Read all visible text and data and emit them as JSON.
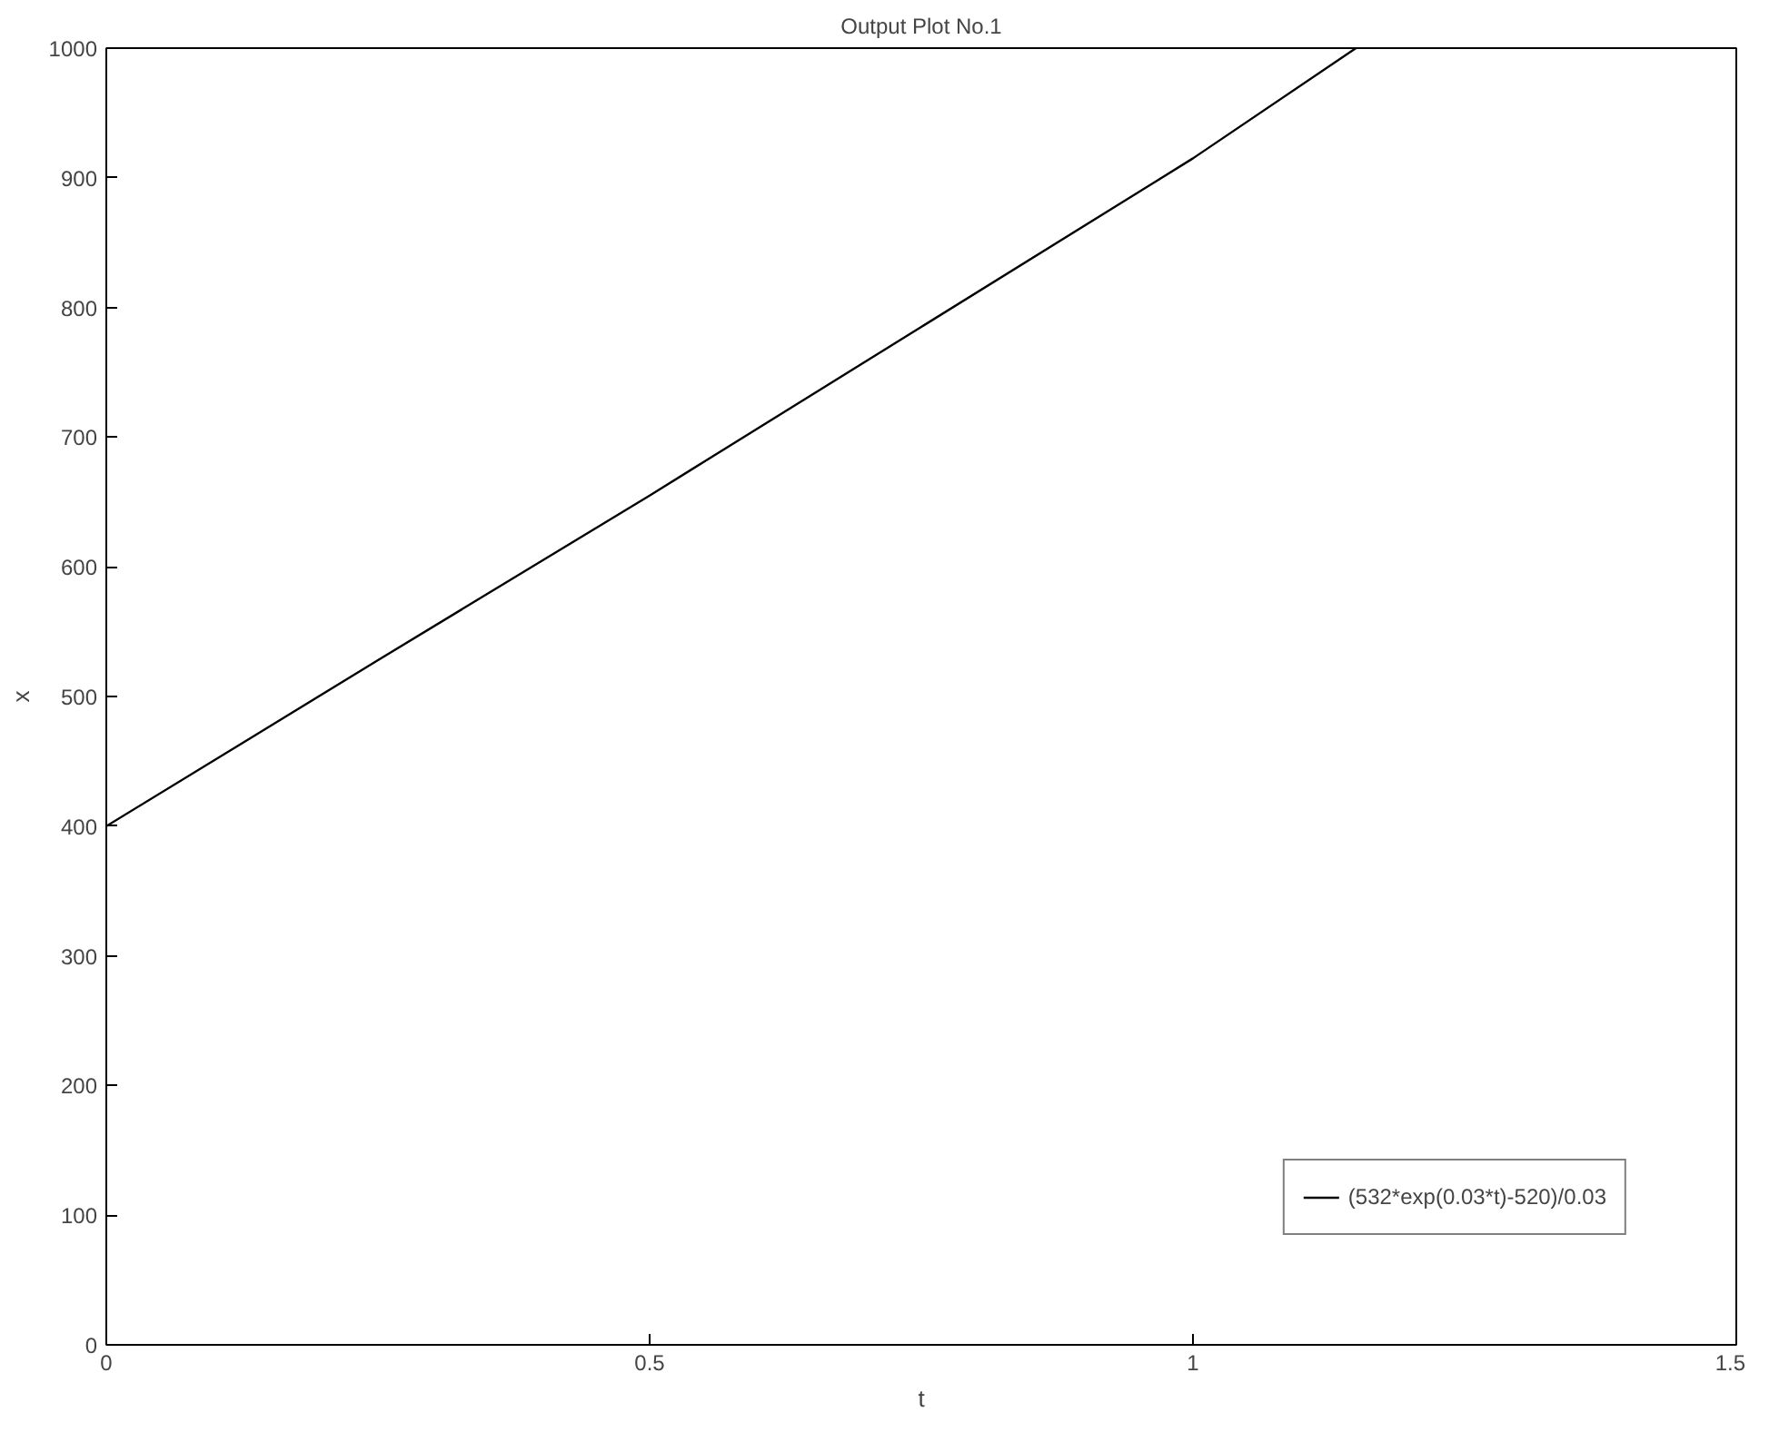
{
  "chart_data": {
    "type": "line",
    "title": "Output Plot No.1",
    "xlabel": "t",
    "ylabel": "x",
    "x": [
      0,
      0.25,
      0.5,
      0.75,
      1,
      1.15
    ],
    "series": [
      {
        "name": "(532*exp(0.03*t)-520)/0.03",
        "color": "#000000",
        "values": [
          400,
          528,
          655,
          785,
          915,
          1000
        ]
      }
    ],
    "xlim": [
      0,
      1.5
    ],
    "ylim": [
      0,
      1000
    ],
    "xticks": [
      0,
      0.5,
      1,
      1.5
    ],
    "yticks": [
      0,
      100,
      200,
      300,
      400,
      500,
      600,
      700,
      800,
      900,
      1000
    ],
    "grid": false,
    "legend": "bottom right",
    "marker": "none",
    "line_style": "solid"
  }
}
